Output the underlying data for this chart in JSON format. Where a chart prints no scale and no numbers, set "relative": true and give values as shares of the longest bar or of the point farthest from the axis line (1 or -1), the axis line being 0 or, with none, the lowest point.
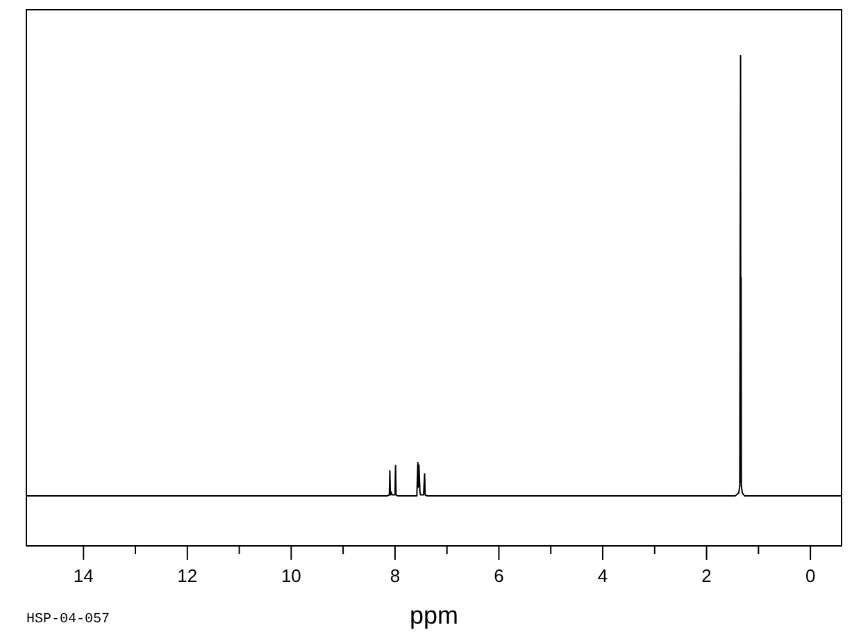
{
  "chart_data": {
    "type": "line",
    "xlabel": "ppm",
    "annotations": [
      "HSP-04-057"
    ],
    "relative": true,
    "color": "#000000",
    "x": [
      15.1,
      12.0,
      8.15,
      8.11,
      8.1,
      8.09,
      8.07,
      8.06,
      8.0,
      7.99,
      7.98,
      7.95,
      7.58,
      7.56,
      7.55,
      7.54,
      7.52,
      7.51,
      7.45,
      7.43,
      7.42,
      7.38,
      1.45,
      1.38,
      1.36,
      1.345,
      1.34,
      1.335,
      1.33,
      1.31,
      1.27,
      -0.6
    ],
    "values": [
      0.102,
      0.102,
      0.102,
      0.104,
      0.153,
      0.104,
      0.11,
      0.104,
      0.104,
      0.164,
      0.104,
      0.102,
      0.102,
      0.17,
      0.12,
      0.165,
      0.11,
      0.104,
      0.104,
      0.147,
      0.104,
      0.102,
      0.102,
      0.108,
      0.122,
      1.0,
      0.13,
      0.547,
      0.122,
      0.108,
      0.102,
      0.102
    ],
    "xlim": [
      15.1,
      -0.6
    ],
    "xticks": [
      14,
      {
        "value": 13,
        "label": null
      },
      12,
      {
        "value": 11,
        "label": null
      },
      10,
      {
        "value": 9,
        "label": null
      },
      8,
      {
        "value": 7,
        "label": null
      },
      6,
      {
        "value": 5,
        "label": null
      },
      4,
      {
        "value": 3,
        "label": null
      },
      2,
      {
        "value": 1,
        "label": null
      },
      0
    ]
  }
}
